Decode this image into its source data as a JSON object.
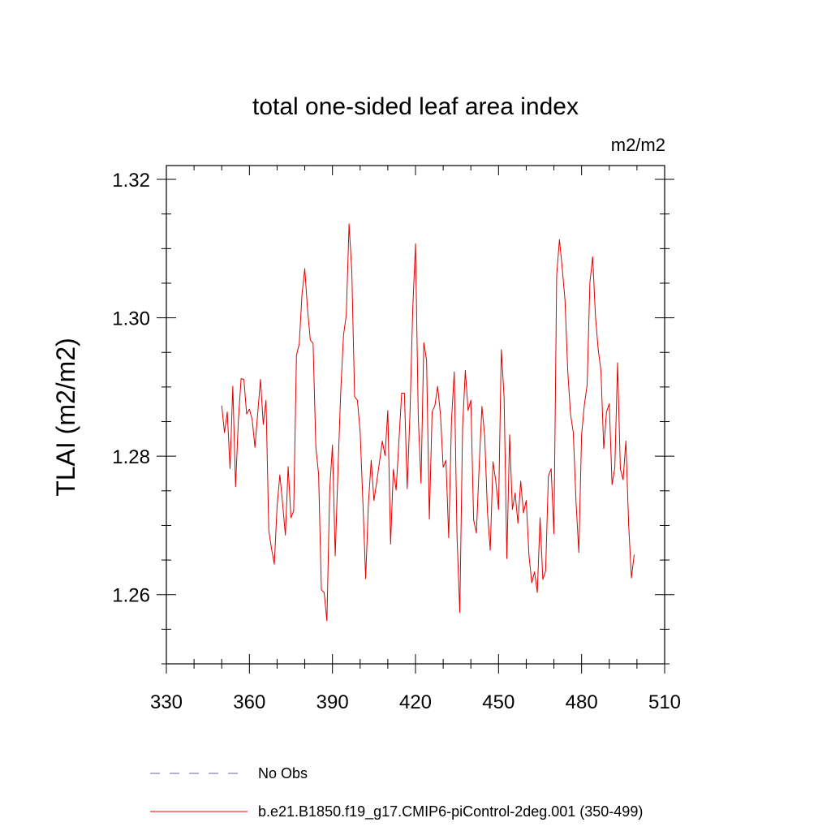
{
  "chart_data": {
    "type": "line",
    "title": "total one-sided leaf area index",
    "units": "m2/m2",
    "ylabel": "TLAI  (m2/m2)",
    "xlabel": "",
    "xlim": [
      330,
      510
    ],
    "ylim": [
      1.25,
      1.322
    ],
    "xticks": [
      330,
      360,
      390,
      420,
      450,
      480,
      510
    ],
    "xtick_labels": [
      "330",
      "360",
      "390",
      "420",
      "450",
      "480",
      "510"
    ],
    "yticks": [
      1.26,
      1.28,
      1.3,
      1.32
    ],
    "ytick_labels": [
      "1.26",
      "1.28",
      "1.30",
      "1.32"
    ],
    "grid": false,
    "legend_position": "bottom",
    "series_color": "#e00000",
    "obs_color": "#6b5fb0",
    "legend": [
      {
        "label": "No Obs",
        "style": "dashed"
      },
      {
        "label": "b.e21.B1850.f19_g17.CMIP6-piControl-2deg.001 (350-499)",
        "style": "solid"
      }
    ],
    "series": [
      {
        "name": "b.e21.B1850.f19_g17.CMIP6-piControl-2deg.001 (350-499)",
        "x_start": 350,
        "x_step": 1,
        "values": [
          1.2873,
          1.2834,
          1.2864,
          1.2782,
          1.2901,
          1.2756,
          1.2851,
          1.2912,
          1.2911,
          1.2861,
          1.2868,
          1.2853,
          1.2813,
          1.2862,
          1.2911,
          1.2846,
          1.2881,
          1.2693,
          1.2666,
          1.2644,
          1.2728,
          1.2773,
          1.2731,
          1.2686,
          1.2785,
          1.2711,
          1.2721,
          1.2946,
          1.2962,
          1.3034,
          1.3071,
          1.3012,
          1.2968,
          1.2963,
          1.2813,
          1.2774,
          1.2607,
          1.2603,
          1.2562,
          1.2751,
          1.2816,
          1.2656,
          1.2781,
          1.2894,
          1.2975,
          1.3004,
          1.3136,
          1.3066,
          1.2886,
          1.2881,
          1.2836,
          1.2733,
          1.2623,
          1.2732,
          1.2794,
          1.2736,
          1.2763,
          1.2792,
          1.2822,
          1.2801,
          1.2866,
          1.2673,
          1.2781,
          1.2751,
          1.2821,
          1.2891,
          1.2891,
          1.2753,
          1.2862,
          1.3012,
          1.3107,
          1.2856,
          1.2761,
          1.2964,
          1.2939,
          1.2709,
          1.2864,
          1.2873,
          1.2901,
          1.2861,
          1.2784,
          1.2794,
          1.2682,
          1.2851,
          1.2922,
          1.2684,
          1.2574,
          1.2841,
          1.2924,
          1.2866,
          1.2881,
          1.2708,
          1.2689,
          1.2786,
          1.2872,
          1.2829,
          1.2719,
          1.2664,
          1.2792,
          1.2764,
          1.2723,
          1.2954,
          1.2886,
          1.2652,
          1.2831,
          1.2723,
          1.2747,
          1.2703,
          1.2764,
          1.2718,
          1.2736,
          1.2656,
          1.2617,
          1.2633,
          1.2603,
          1.2711,
          1.2622,
          1.2634,
          1.2771,
          1.2782,
          1.2688,
          1.3062,
          1.3113,
          1.3072,
          1.3026,
          1.2923,
          1.2861,
          1.2834,
          1.2733,
          1.2661,
          1.2831,
          1.2874,
          1.2903,
          1.3051,
          1.3088,
          1.3003,
          1.2954,
          1.2923,
          1.2811,
          1.2864,
          1.2876,
          1.2759,
          1.2783,
          1.2935,
          1.2782,
          1.2766,
          1.2822,
          1.2701,
          1.2624,
          1.2658
        ]
      }
    ]
  }
}
